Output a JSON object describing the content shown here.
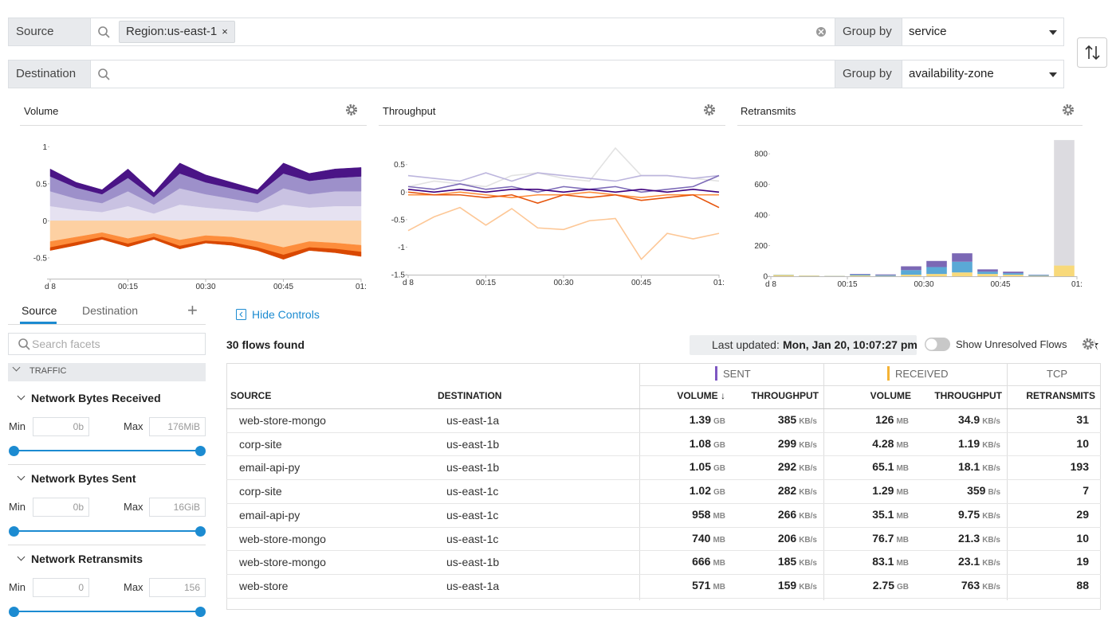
{
  "filters": [
    {
      "label": "Source",
      "tag": "Region:us-east-1",
      "tag_close": "×",
      "group_by": "Group by",
      "group": "service"
    },
    {
      "label": "Destination",
      "group_by": "Group by",
      "group": "availability-zone"
    }
  ],
  "chart_data": [
    {
      "type": "area",
      "title": "Volume",
      "stacked": true,
      "x": [
        0,
        5,
        10,
        15,
        20,
        25,
        30,
        35,
        40,
        45,
        50,
        55,
        60
      ],
      "xlim": [
        0,
        60
      ],
      "xticks": [
        {
          "value": 0,
          "label": "d 8"
        },
        {
          "value": 15,
          "label": "00:15"
        },
        {
          "value": 30,
          "label": "00:30"
        },
        {
          "value": 45,
          "label": "00:45"
        },
        {
          "value": 60,
          "label": "01:"
        }
      ],
      "ylim": [
        -0.78,
        1.1
      ],
      "yticks": [
        -0.5,
        0,
        0.5,
        1
      ],
      "series": [
        {
          "color": "#e6e2f1",
          "values": [
            0.2,
            0.15,
            0.12,
            0.2,
            0.1,
            0.22,
            0.18,
            0.15,
            0.12,
            0.22,
            0.18,
            0.2,
            0.2
          ]
        },
        {
          "color": "#c9c2e2",
          "values": [
            0.2,
            0.15,
            0.12,
            0.2,
            0.12,
            0.22,
            0.18,
            0.15,
            0.12,
            0.22,
            0.18,
            0.2,
            0.2
          ]
        },
        {
          "color": "#9d90ca",
          "values": [
            0.2,
            0.15,
            0.12,
            0.18,
            0.1,
            0.2,
            0.16,
            0.14,
            0.12,
            0.2,
            0.18,
            0.18,
            0.2
          ]
        },
        {
          "color": "#4a1486",
          "values": [
            0.1,
            0.07,
            0.06,
            0.12,
            0.06,
            0.14,
            0.1,
            0.08,
            0.06,
            0.14,
            0.1,
            0.12,
            0.12
          ]
        },
        {
          "color": "#fdd0a2",
          "values": [
            -0.28,
            -0.22,
            -0.16,
            -0.24,
            -0.17,
            -0.26,
            -0.2,
            -0.22,
            -0.28,
            -0.36,
            -0.28,
            -0.3,
            -0.33
          ]
        },
        {
          "color": "#fd8d3c",
          "values": [
            -0.08,
            -0.07,
            -0.06,
            -0.07,
            -0.05,
            -0.08,
            -0.07,
            -0.07,
            -0.08,
            -0.1,
            -0.08,
            -0.08,
            -0.09
          ]
        },
        {
          "color": "#d94801",
          "values": [
            -0.04,
            -0.04,
            -0.03,
            -0.04,
            -0.03,
            -0.04,
            -0.03,
            -0.04,
            -0.04,
            -0.06,
            -0.04,
            -0.05,
            -0.06
          ]
        }
      ]
    },
    {
      "type": "line",
      "title": "Throughput",
      "x": [
        0,
        5,
        10,
        15,
        20,
        25,
        30,
        35,
        40,
        45,
        50,
        55,
        60
      ],
      "xlim": [
        0,
        60
      ],
      "xticks": [
        {
          "value": 0,
          "label": "d 8"
        },
        {
          "value": 15,
          "label": "00:15"
        },
        {
          "value": 30,
          "label": "00:30"
        },
        {
          "value": 45,
          "label": "00:45"
        },
        {
          "value": 60,
          "label": "01:"
        }
      ],
      "ylim": [
        -1.5,
        0.8
      ],
      "yticks": [
        -1.5,
        -1,
        -0.5,
        0,
        0.5
      ],
      "series": [
        {
          "color": "#fdc796",
          "values": [
            -0.7,
            -0.45,
            -0.28,
            -0.6,
            -0.3,
            -0.65,
            -0.68,
            -0.52,
            -0.48,
            -1.22,
            -0.75,
            -0.85,
            -0.75
          ]
        },
        {
          "color": "#e2e2e2",
          "values": [
            0.1,
            0.2,
            0.15,
            0.1,
            0.3,
            0.35,
            0.25,
            0.2,
            0.8,
            0.3,
            0.3,
            0.25,
            0.2
          ]
        },
        {
          "color": "#bcb5dd",
          "values": [
            0.3,
            0.25,
            0.2,
            0.35,
            0.2,
            0.35,
            0.3,
            0.25,
            0.2,
            0.3,
            0.3,
            0.25,
            0.3
          ]
        },
        {
          "color": "#7d6bb8",
          "values": [
            0.1,
            0.05,
            0.15,
            0.05,
            0.1,
            0.0,
            0.1,
            0.05,
            0.1,
            0.0,
            0.05,
            0.1,
            0.3
          ]
        },
        {
          "color": "#3f007d",
          "values": [
            0.05,
            0.0,
            0.05,
            0.0,
            0.05,
            0.05,
            0.0,
            0.05,
            0.0,
            0.05,
            0.0,
            0.05,
            0.0
          ]
        },
        {
          "color": "#fd8d3c",
          "values": [
            -0.05,
            -0.05,
            0.0,
            -0.05,
            -0.1,
            -0.05,
            -0.05,
            0.0,
            -0.05,
            -0.1,
            -0.05,
            -0.05,
            -0.05
          ]
        },
        {
          "color": "#e6550d",
          "values": [
            0.0,
            -0.05,
            -0.05,
            -0.1,
            -0.05,
            -0.2,
            -0.05,
            -0.1,
            -0.05,
            -0.15,
            -0.1,
            -0.05,
            -0.28
          ]
        }
      ]
    },
    {
      "type": "bar",
      "title": "Retransmits",
      "stacked": true,
      "x": [
        2.5,
        7.5,
        12.5,
        17.5,
        22.5,
        27.5,
        32.5,
        37.5,
        42.5,
        47.5,
        52.5,
        57.5
      ],
      "xlim": [
        0,
        60
      ],
      "xticks": [
        {
          "value": 0,
          "label": "d 8"
        },
        {
          "value": 15,
          "label": "00:15"
        },
        {
          "value": 30,
          "label": "00:30"
        },
        {
          "value": 45,
          "label": "00:45"
        },
        {
          "value": 60,
          "label": "01:"
        }
      ],
      "ylim": [
        0,
        900
      ],
      "yticks": [
        0,
        200,
        400,
        600,
        800
      ],
      "series": [
        {
          "color": "#f8d97a",
          "values": [
            8,
            4,
            2,
            5,
            2,
            10,
            15,
            25,
            15,
            10,
            3,
            70
          ]
        },
        {
          "color": "#5aa9d6",
          "values": [
            2,
            1,
            1,
            6,
            5,
            30,
            45,
            70,
            15,
            10,
            5,
            0
          ]
        },
        {
          "color": "#7b68b5",
          "values": [
            0,
            0,
            0,
            4,
            5,
            25,
            40,
            55,
            15,
            10,
            2,
            0
          ]
        },
        {
          "color": "#dcdbe0",
          "values": [
            0,
            0,
            0,
            0,
            0,
            0,
            0,
            0,
            0,
            0,
            0,
            820
          ]
        }
      ]
    }
  ],
  "facets": {
    "tabs": [
      "Source",
      "Destination"
    ],
    "add": "+",
    "search_placeholder": "Search facets",
    "section": "TRAFFIC",
    "min_label": "Min",
    "max_label": "Max",
    "groups": [
      {
        "title": "Network Bytes Received",
        "min": "0b",
        "max": "176MiB"
      },
      {
        "title": "Network Bytes Sent",
        "min": "0b",
        "max": "16GiB"
      },
      {
        "title": "Network Retransmits",
        "min": "0",
        "max": "156"
      }
    ]
  },
  "toolbar": {
    "hide_controls": "Hide Controls",
    "count": "30 flows found",
    "updated_label": "Last updated:",
    "updated_value": "Mon, Jan 20, 10:07:27 pm",
    "toggle": "Show Unresolved Flows"
  },
  "table": {
    "groups": [
      "SENT",
      "RECEIVED",
      "TCP"
    ],
    "columns": [
      "SOURCE",
      "DESTINATION",
      "VOLUME ↓",
      "THROUGHPUT",
      "VOLUME",
      "THROUGHPUT",
      "RETRANSMITS"
    ],
    "rows": [
      [
        "web-store-mongo",
        "us-east-1a",
        "1.39",
        "GB",
        "385",
        "KB/s",
        "126",
        "MB",
        "34.9",
        "KB/s",
        "31"
      ],
      [
        "corp-site",
        "us-east-1b",
        "1.08",
        "GB",
        "299",
        "KB/s",
        "4.28",
        "MB",
        "1.19",
        "KB/s",
        "10"
      ],
      [
        "email-api-py",
        "us-east-1b",
        "1.05",
        "GB",
        "292",
        "KB/s",
        "65.1",
        "MB",
        "18.1",
        "KB/s",
        "193"
      ],
      [
        "corp-site",
        "us-east-1c",
        "1.02",
        "GB",
        "282",
        "KB/s",
        "1.29",
        "MB",
        "359",
        "B/s",
        "7"
      ],
      [
        "email-api-py",
        "us-east-1c",
        "958",
        "MB",
        "266",
        "KB/s",
        "35.1",
        "MB",
        "9.75",
        "KB/s",
        "29"
      ],
      [
        "web-store-mongo",
        "us-east-1c",
        "740",
        "MB",
        "206",
        "KB/s",
        "76.7",
        "MB",
        "21.3",
        "KB/s",
        "10"
      ],
      [
        "web-store-mongo",
        "us-east-1b",
        "666",
        "MB",
        "185",
        "KB/s",
        "83.1",
        "MB",
        "23.1",
        "KB/s",
        "19"
      ],
      [
        "web-store",
        "us-east-1a",
        "571",
        "MB",
        "159",
        "KB/s",
        "2.75",
        "GB",
        "763",
        "KB/s",
        "88"
      ]
    ]
  }
}
